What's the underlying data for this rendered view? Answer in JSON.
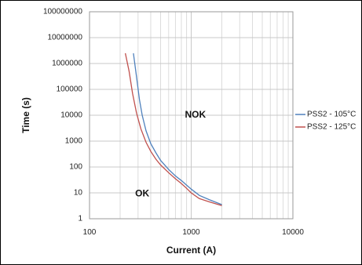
{
  "chart_data": {
    "type": "line",
    "xlabel": "Current (A)",
    "ylabel": "Time (s)",
    "x_scale": "log",
    "y_scale": "log",
    "xlim": [
      100,
      10000
    ],
    "ylim": [
      1,
      100000000
    ],
    "x_ticks": [
      "100",
      "1000",
      "10000"
    ],
    "y_ticks": [
      "1",
      "10",
      "100",
      "1000",
      "10000",
      "100000",
      "1000000",
      "10000000",
      "100000000"
    ],
    "grid": true,
    "legend_position": "right",
    "annotations": [
      {
        "text": "NOK",
        "x": 1100,
        "y": 10000
      },
      {
        "text": "OK",
        "x": 330,
        "y": 9
      }
    ],
    "series": [
      {
        "name": "PSS2 - 105°C",
        "color": "#4F81BD",
        "x": [
          270,
          290,
          310,
          330,
          360,
          400,
          450,
          500,
          600,
          700,
          800,
          900,
          1000,
          1200,
          1500,
          2000
        ],
        "y": [
          2500000,
          300000,
          40000,
          10000,
          2500,
          800,
          350,
          180,
          80,
          45,
          30,
          20,
          14,
          8,
          5.5,
          3.5
        ]
      },
      {
        "name": "PSS2 - 125°C",
        "color": "#C0504D",
        "x": [
          225,
          245,
          265,
          290,
          320,
          360,
          400,
          450,
          500,
          600,
          700,
          800,
          900,
          1000,
          1200,
          1500,
          2000
        ],
        "y": [
          2500000,
          500000,
          70000,
          12000,
          3000,
          900,
          400,
          200,
          120,
          60,
          35,
          23,
          15,
          10,
          6,
          4.5,
          3.2
        ]
      }
    ]
  }
}
